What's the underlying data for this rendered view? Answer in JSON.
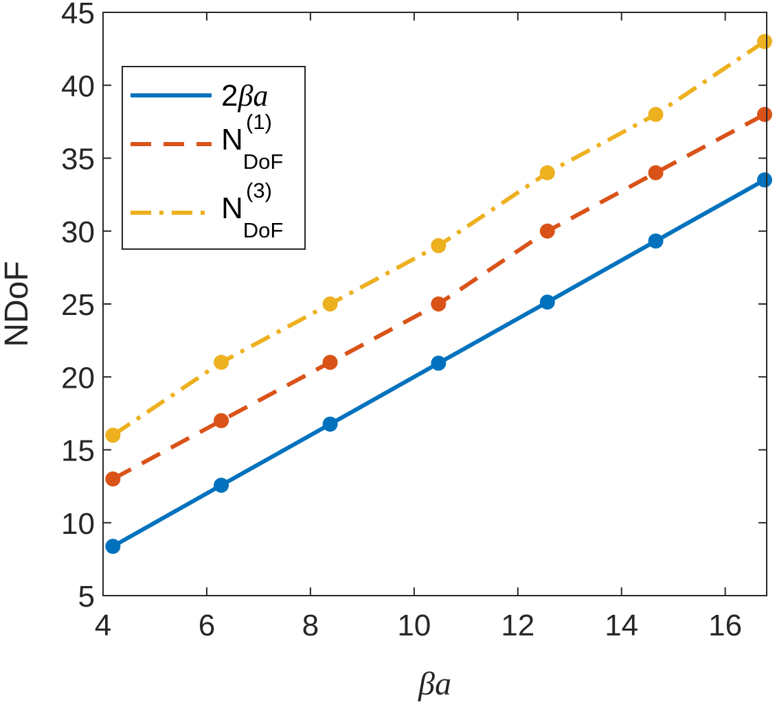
{
  "chart_data": {
    "type": "line",
    "title": "",
    "xlabel": "βa",
    "ylabel": "NDoF",
    "xlim": [
      4,
      16.8
    ],
    "ylim": [
      5,
      45
    ],
    "xticks": [
      "4",
      "6",
      "8",
      "10",
      "12",
      "14",
      "16"
    ],
    "yticks": [
      "5",
      "10",
      "15",
      "20",
      "25",
      "30",
      "35",
      "40",
      "45"
    ],
    "grid": false,
    "legend_position": "top-left",
    "x": [
      4.19,
      6.28,
      8.38,
      10.47,
      12.57,
      14.66,
      16.76
    ],
    "series": [
      {
        "name": "2βa",
        "legend_main": "2",
        "legend_math": "βa",
        "line_style": "solid",
        "color": "#0072BD",
        "values": [
          8.38,
          12.57,
          16.76,
          20.94,
          25.13,
          29.32,
          33.51
        ]
      },
      {
        "name": "N_DoF^(1)",
        "legend_main": "N",
        "legend_sub": "DoF",
        "legend_sup": "(1)",
        "line_style": "dashed",
        "color": "#D95319",
        "values": [
          13,
          17,
          21,
          25,
          30,
          34,
          38
        ]
      },
      {
        "name": "N_DoF^(3)",
        "legend_main": "N",
        "legend_sub": "DoF",
        "legend_sup": "(3)",
        "line_style": "dashdot",
        "color": "#EDB120",
        "values": [
          16,
          21,
          25,
          29,
          34,
          38,
          43
        ]
      }
    ]
  }
}
